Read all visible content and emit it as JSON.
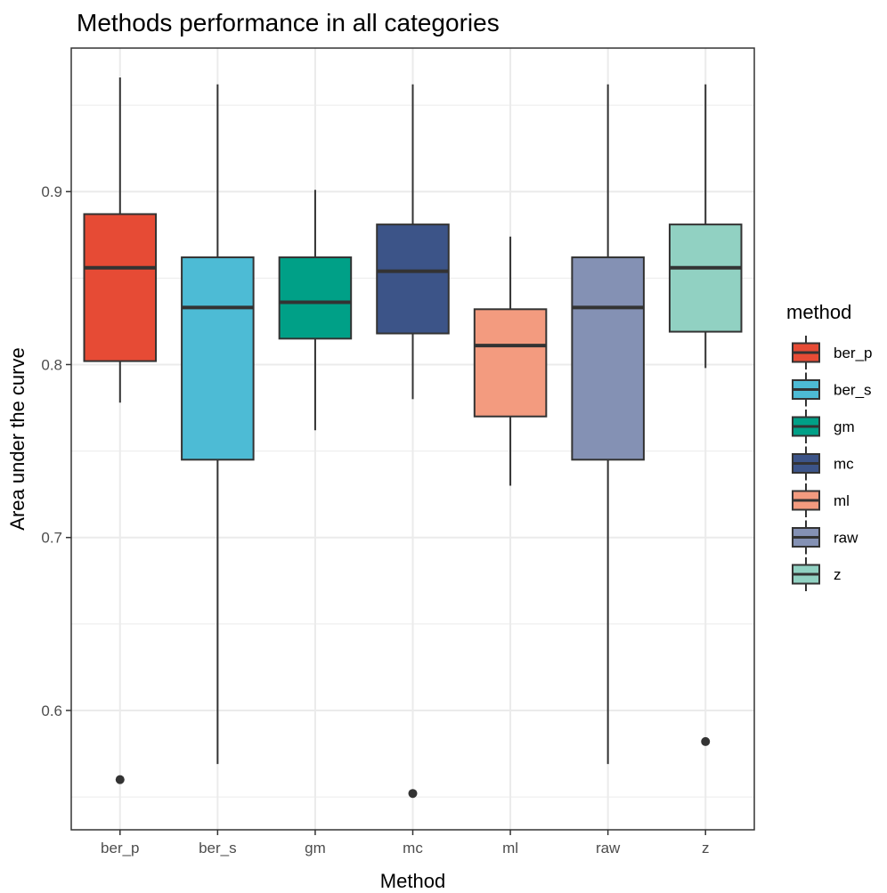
{
  "chart_data": {
    "type": "boxplot",
    "title": "Methods performance in all categories",
    "xlabel": "Method",
    "ylabel": "Area under the curve",
    "ylim": [
      0.531,
      0.983
    ],
    "yticks": [
      0.6,
      0.7,
      0.8,
      0.9
    ],
    "grid": true,
    "legend": {
      "title": "method",
      "position": "right"
    },
    "categories": [
      "ber_p",
      "ber_s",
      "gm",
      "mc",
      "ml",
      "raw",
      "z"
    ],
    "boxes": [
      {
        "name": "ber_p",
        "color": "#E64B35",
        "whisker_low": 0.778,
        "q1": 0.802,
        "median": 0.856,
        "q3": 0.887,
        "whisker_high": 0.966,
        "outliers": [
          0.56
        ]
      },
      {
        "name": "ber_s",
        "color": "#4DBBD5",
        "whisker_low": 0.569,
        "q1": 0.745,
        "median": 0.833,
        "q3": 0.862,
        "whisker_high": 0.962,
        "outliers": []
      },
      {
        "name": "gm",
        "color": "#00A087",
        "whisker_low": 0.762,
        "q1": 0.815,
        "median": 0.836,
        "q3": 0.862,
        "whisker_high": 0.901,
        "outliers": []
      },
      {
        "name": "mc",
        "color": "#3C5488",
        "whisker_low": 0.78,
        "q1": 0.818,
        "median": 0.854,
        "q3": 0.881,
        "whisker_high": 0.962,
        "outliers": [
          0.552
        ]
      },
      {
        "name": "ml",
        "color": "#F39B7F",
        "whisker_low": 0.73,
        "q1": 0.77,
        "median": 0.811,
        "q3": 0.832,
        "whisker_high": 0.874,
        "outliers": []
      },
      {
        "name": "raw",
        "color": "#8491B4",
        "whisker_low": 0.569,
        "q1": 0.745,
        "median": 0.833,
        "q3": 0.862,
        "whisker_high": 0.962,
        "outliers": []
      },
      {
        "name": "z",
        "color": "#91D1C2",
        "whisker_low": 0.798,
        "q1": 0.819,
        "median": 0.856,
        "q3": 0.881,
        "whisker_high": 0.962,
        "outliers": [
          0.582
        ]
      }
    ]
  }
}
